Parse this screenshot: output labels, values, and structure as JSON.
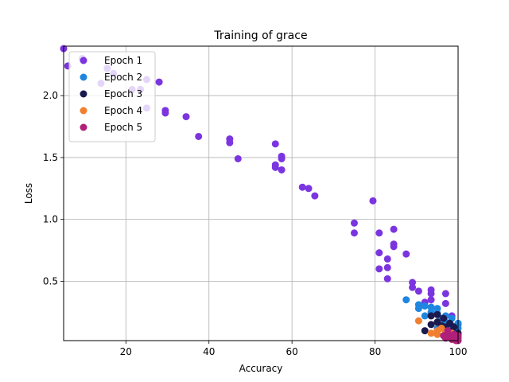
{
  "chart_data": {
    "type": "scatter",
    "title": "Training of grace",
    "xlabel": "Accuracy",
    "ylabel": "Loss",
    "xlim": [
      5,
      100
    ],
    "ylim": [
      0.02,
      2.4
    ],
    "xticks": [
      20,
      40,
      60,
      80,
      100
    ],
    "yticks": [
      0.5,
      1.0,
      1.5,
      2.0
    ],
    "ytick_labels": [
      "0.5",
      "1.0",
      "1.5",
      "2.0"
    ],
    "grid": true,
    "legend_position": "top-left",
    "series": [
      {
        "name": "Epoch 1",
        "color": "#7b35e0",
        "points": [
          [
            5,
            2.38
          ],
          [
            6,
            2.24
          ],
          [
            9.5,
            2.3
          ],
          [
            14,
            2.1
          ],
          [
            15.5,
            2.22
          ],
          [
            17,
            2.18
          ],
          [
            21.5,
            2.05
          ],
          [
            23.5,
            2.05
          ],
          [
            25,
            2.13
          ],
          [
            25,
            1.9
          ],
          [
            28,
            2.11
          ],
          [
            29.5,
            1.88
          ],
          [
            29.5,
            1.86
          ],
          [
            34.5,
            1.83
          ],
          [
            37.5,
            1.67
          ],
          [
            45,
            1.65
          ],
          [
            45,
            1.62
          ],
          [
            47,
            1.49
          ],
          [
            56,
            1.61
          ],
          [
            56,
            1.44
          ],
          [
            56,
            1.42
          ],
          [
            57.5,
            1.51
          ],
          [
            57.5,
            1.49
          ],
          [
            57.5,
            1.4
          ],
          [
            62.5,
            1.26
          ],
          [
            64,
            1.25
          ],
          [
            65.5,
            1.19
          ],
          [
            75,
            0.97
          ],
          [
            75,
            0.89
          ],
          [
            79.5,
            1.15
          ],
          [
            81,
            0.89
          ],
          [
            81,
            0.73
          ],
          [
            81,
            0.6
          ],
          [
            83,
            0.68
          ],
          [
            83,
            0.61
          ],
          [
            83,
            0.52
          ],
          [
            84.5,
            0.92
          ],
          [
            84.5,
            0.8
          ],
          [
            84.5,
            0.78
          ],
          [
            87.5,
            0.72
          ],
          [
            89,
            0.49
          ],
          [
            89,
            0.45
          ],
          [
            90.5,
            0.42
          ],
          [
            92,
            0.33
          ],
          [
            93.5,
            0.43
          ],
          [
            93.5,
            0.4
          ],
          [
            93.5,
            0.35
          ],
          [
            97,
            0.4
          ],
          [
            97,
            0.32
          ],
          [
            98.5,
            0.22
          ],
          [
            100,
            0.15
          ]
        ]
      },
      {
        "name": "Epoch 2",
        "color": "#1f86e0",
        "points": [
          [
            87.5,
            0.35
          ],
          [
            90.5,
            0.31
          ],
          [
            90.5,
            0.28
          ],
          [
            92,
            0.3
          ],
          [
            92,
            0.22
          ],
          [
            93.5,
            0.29
          ],
          [
            93.5,
            0.25
          ],
          [
            95,
            0.28
          ],
          [
            95,
            0.24
          ],
          [
            96,
            0.2
          ],
          [
            97,
            0.22
          ],
          [
            97,
            0.17
          ],
          [
            98.5,
            0.2
          ],
          [
            98.5,
            0.14
          ],
          [
            100,
            0.16
          ],
          [
            100,
            0.12
          ],
          [
            95,
            0.12
          ],
          [
            100,
            0.07
          ]
        ]
      },
      {
        "name": "Epoch 3",
        "color": "#1a1a4e",
        "points": [
          [
            92,
            0.1
          ],
          [
            93.5,
            0.22
          ],
          [
            93.5,
            0.15
          ],
          [
            95,
            0.23
          ],
          [
            95,
            0.17
          ],
          [
            96,
            0.14
          ],
          [
            96.5,
            0.2
          ],
          [
            97,
            0.13
          ],
          [
            98,
            0.16
          ],
          [
            98.5,
            0.1
          ],
          [
            99,
            0.13
          ],
          [
            100,
            0.08
          ],
          [
            97,
            0.08
          ],
          [
            98.5,
            0.06
          ]
        ]
      },
      {
        "name": "Epoch 4",
        "color": "#f08030",
        "points": [
          [
            90.5,
            0.18
          ],
          [
            93.5,
            0.08
          ],
          [
            95,
            0.1
          ],
          [
            95,
            0.07
          ],
          [
            96,
            0.12
          ],
          [
            97,
            0.09
          ],
          [
            97,
            0.06
          ],
          [
            98.5,
            0.08
          ],
          [
            99,
            0.05
          ],
          [
            100,
            0.05
          ]
        ]
      },
      {
        "name": "Epoch 5",
        "color": "#b0207a",
        "points": [
          [
            96.5,
            0.06
          ],
          [
            97,
            0.04
          ],
          [
            97.5,
            0.1
          ],
          [
            98,
            0.05
          ],
          [
            98.5,
            0.03
          ],
          [
            99,
            0.07
          ],
          [
            99,
            0.04
          ],
          [
            99.5,
            0.02
          ],
          [
            100,
            0.04
          ],
          [
            100,
            0.06
          ],
          [
            100,
            0.02
          ],
          [
            97.5,
            0.07
          ]
        ]
      }
    ]
  }
}
